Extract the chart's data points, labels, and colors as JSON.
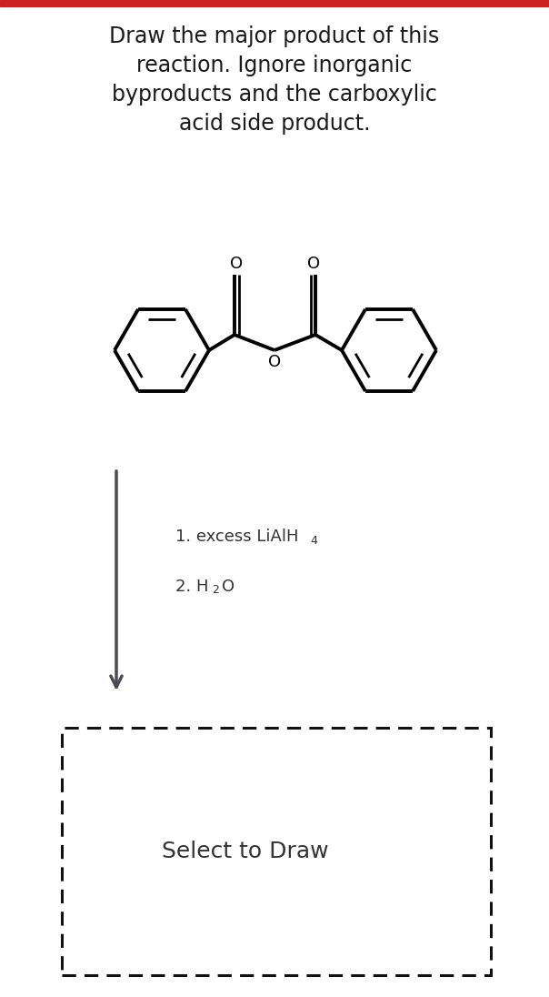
{
  "title_lines": [
    "Draw the major product of this",
    "reaction. Ignore inorganic",
    "byproducts and the carboxylic",
    "acid side product."
  ],
  "title_fontsize": 17,
  "title_color": "#1a1a1a",
  "background_color": "#ffffff",
  "top_bar_color": "#cc2222",
  "arrow_color": "#4a4a55",
  "dashed_box_color": "#111111",
  "select_to_draw_text": "Select to Draw",
  "select_fontsize": 18,
  "molecule_color": "#000000",
  "molecule_lw": 2.8,
  "inner_lw": 2.0,
  "reagent_color": "#333333",
  "reagent_fontsize": 13
}
